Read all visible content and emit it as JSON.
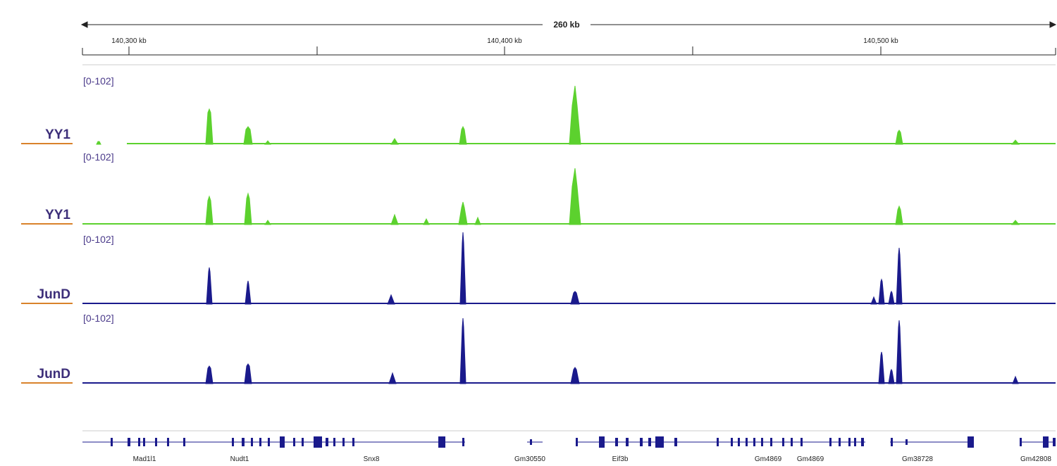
{
  "ruler": {
    "span": "260 kb",
    "ticks": [
      "140,300 kb",
      "140,400 kb",
      "140,500 kb"
    ]
  },
  "tracks": [
    {
      "name": "YY1",
      "range": "[0-102]"
    },
    {
      "name": "YY1",
      "range": "[0-102]"
    },
    {
      "name": "JunD",
      "range": "[0-102]"
    },
    {
      "name": "JunD",
      "range": "[0-102]"
    }
  ],
  "genes": [
    "Mad1l1",
    "Nudt1",
    "Snx8",
    "Gm30550",
    "Eif3b",
    "Gm4869",
    "Gm4869",
    "Gm38728",
    "Gm42808"
  ]
}
